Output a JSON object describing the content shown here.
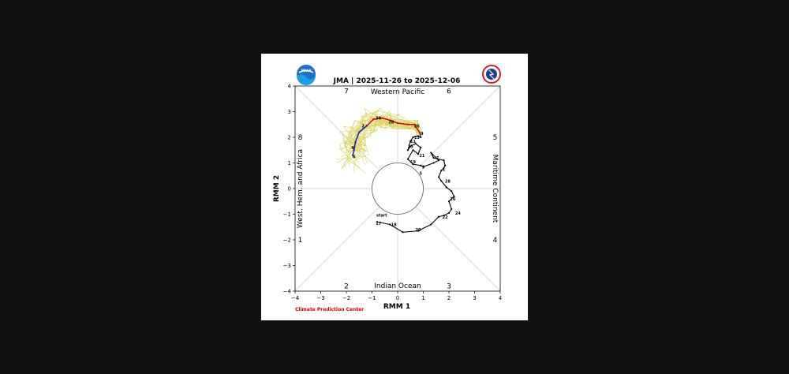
{
  "chart_data": {
    "type": "line",
    "title": "JMA | 2025-11-26 to 2025-12-06",
    "xlabel": "RMM 1",
    "ylabel": "RMM 2",
    "xlim": [
      -4,
      4
    ],
    "ylim": [
      -4,
      4
    ],
    "xticks": [
      "−4",
      "−3",
      "−2",
      "−1",
      "0",
      "1",
      "2",
      "3",
      "4"
    ],
    "yticks": [
      "−4",
      "−3",
      "−2",
      "−1",
      "0",
      "1",
      "2",
      "3",
      "4"
    ],
    "grid": "diagonals",
    "regions": {
      "top": "Western Pacific",
      "bottom": "Indian Ocean",
      "left": "West. Hem. and Africa",
      "right": "Maritime Continent"
    },
    "phases": [
      "1",
      "2",
      "3",
      "4",
      "5",
      "6",
      "7",
      "8"
    ],
    "start_label": "start",
    "credit": "Climate Prediction Center",
    "colors": {
      "observed": "#000000",
      "ensemble_mean_near": "#e00000",
      "ensemble_mean_far": "#1a1aa8",
      "ensemble_members": "#d8d45a"
    },
    "series": [
      {
        "role": "observed",
        "x": [
          -0.8,
          -0.3,
          0.2,
          0.8,
          1.3,
          1.6,
          1.8,
          2.0,
          2.1,
          2.0,
          2.2,
          2.1,
          1.9,
          1.7,
          1.6,
          1.7,
          1.8,
          1.85,
          1.8,
          1.4,
          1.3,
          1.6,
          1.4,
          1.0,
          0.9,
          0.6,
          0.4,
          0.6,
          0.8,
          0.9,
          0.7,
          0.5,
          0.4,
          0.5,
          0.6,
          0.8,
          0.9,
          0.85
        ],
        "y": [
          -1.3,
          -1.4,
          -1.7,
          -1.65,
          -1.4,
          -1.1,
          -1.05,
          -0.95,
          -0.8,
          -0.5,
          -0.3,
          -0.1,
          0.05,
          0.3,
          0.45,
          0.7,
          0.8,
          0.9,
          1.1,
          1.2,
          1.4,
          1.1,
          1.0,
          0.85,
          0.9,
          0.95,
          1.15,
          1.5,
          1.35,
          1.6,
          1.75,
          1.65,
          1.5,
          1.85,
          2.0,
          2.05,
          2.0,
          2.2
        ]
      },
      {
        "role": "ensemble_mean_near",
        "x": [
          0.85,
          0.65,
          0.4,
          0.0,
          -0.25,
          -0.6,
          -0.95,
          -1.2
        ],
        "y": [
          2.2,
          2.5,
          2.5,
          2.55,
          2.65,
          2.75,
          2.7,
          2.45
        ]
      },
      {
        "role": "ensemble_mean_far",
        "x": [
          -1.2,
          -1.5,
          -1.65,
          -1.7,
          -1.75
        ],
        "y": [
          2.45,
          2.2,
          1.8,
          1.5,
          1.3
        ]
      }
    ],
    "day_labels": [
      {
        "text": "17",
        "x": -0.75,
        "y": -1.35
      },
      {
        "text": "18",
        "x": -0.15,
        "y": -1.4
      },
      {
        "text": "20",
        "x": 0.8,
        "y": -1.6
      },
      {
        "text": "22",
        "x": 1.85,
        "y": -1.1
      },
      {
        "text": "24",
        "x": 2.35,
        "y": -0.95
      },
      {
        "text": "26",
        "x": 2.15,
        "y": -0.4
      },
      {
        "text": "28",
        "x": 1.95,
        "y": 0.3
      },
      {
        "text": "1",
        "x": 1.8,
        "y": 0.75
      },
      {
        "text": "7",
        "x": 1.55,
        "y": 1.2
      },
      {
        "text": "3",
        "x": 1.0,
        "y": 0.85
      },
      {
        "text": "5",
        "x": 0.9,
        "y": 0.6
      },
      {
        "text": "19",
        "x": 0.6,
        "y": 1.05
      },
      {
        "text": "21",
        "x": 0.95,
        "y": 1.3
      },
      {
        "text": "15",
        "x": 0.5,
        "y": 1.65
      },
      {
        "text": "11",
        "x": 0.6,
        "y": 1.85
      },
      {
        "text": "13",
        "x": 0.75,
        "y": 2.0
      },
      {
        "text": "9",
        "x": 0.95,
        "y": 2.15
      },
      {
        "text": "26",
        "x": 0.75,
        "y": 2.45
      },
      {
        "text": "28",
        "x": -0.25,
        "y": 2.6
      },
      {
        "text": "30",
        "x": -0.75,
        "y": 2.75
      },
      {
        "text": "2",
        "x": -1.35,
        "y": 2.45
      },
      {
        "text": "4",
        "x": -1.75,
        "y": 1.6
      },
      {
        "text": "6",
        "x": -1.7,
        "y": 1.25
      }
    ]
  }
}
